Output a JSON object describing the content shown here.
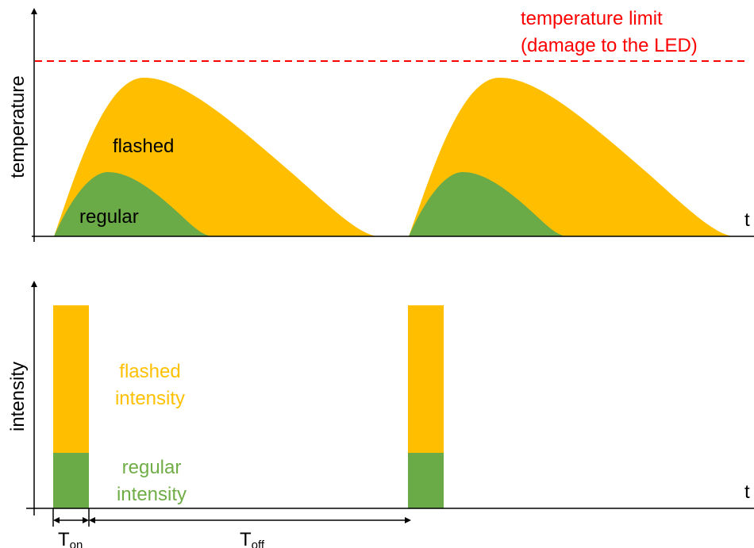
{
  "top_panel": {
    "y_axis_label": "temperature",
    "t_label": "t",
    "limit_label_line1": "temperature limit",
    "limit_label_line2": "(damage to the LED)",
    "flashed_label": "flashed",
    "regular_label": "regular"
  },
  "bottom_panel": {
    "y_axis_label": "intensity",
    "t_label": "t",
    "flashed_label_line1": "flashed",
    "flashed_label_line2": "intensity",
    "regular_label_line1": "regular",
    "regular_label_line2": "intensity",
    "t_on_main": "T",
    "t_on_sub": "on",
    "t_off_main": "T",
    "t_off_sub": "off"
  },
  "colors": {
    "flashed": "#FFBF00",
    "regular": "#6AAA47",
    "limit": "#FF0000",
    "flashed_text": "#FFC000",
    "regular_text": "#70AD47",
    "axis": "#000000"
  }
}
